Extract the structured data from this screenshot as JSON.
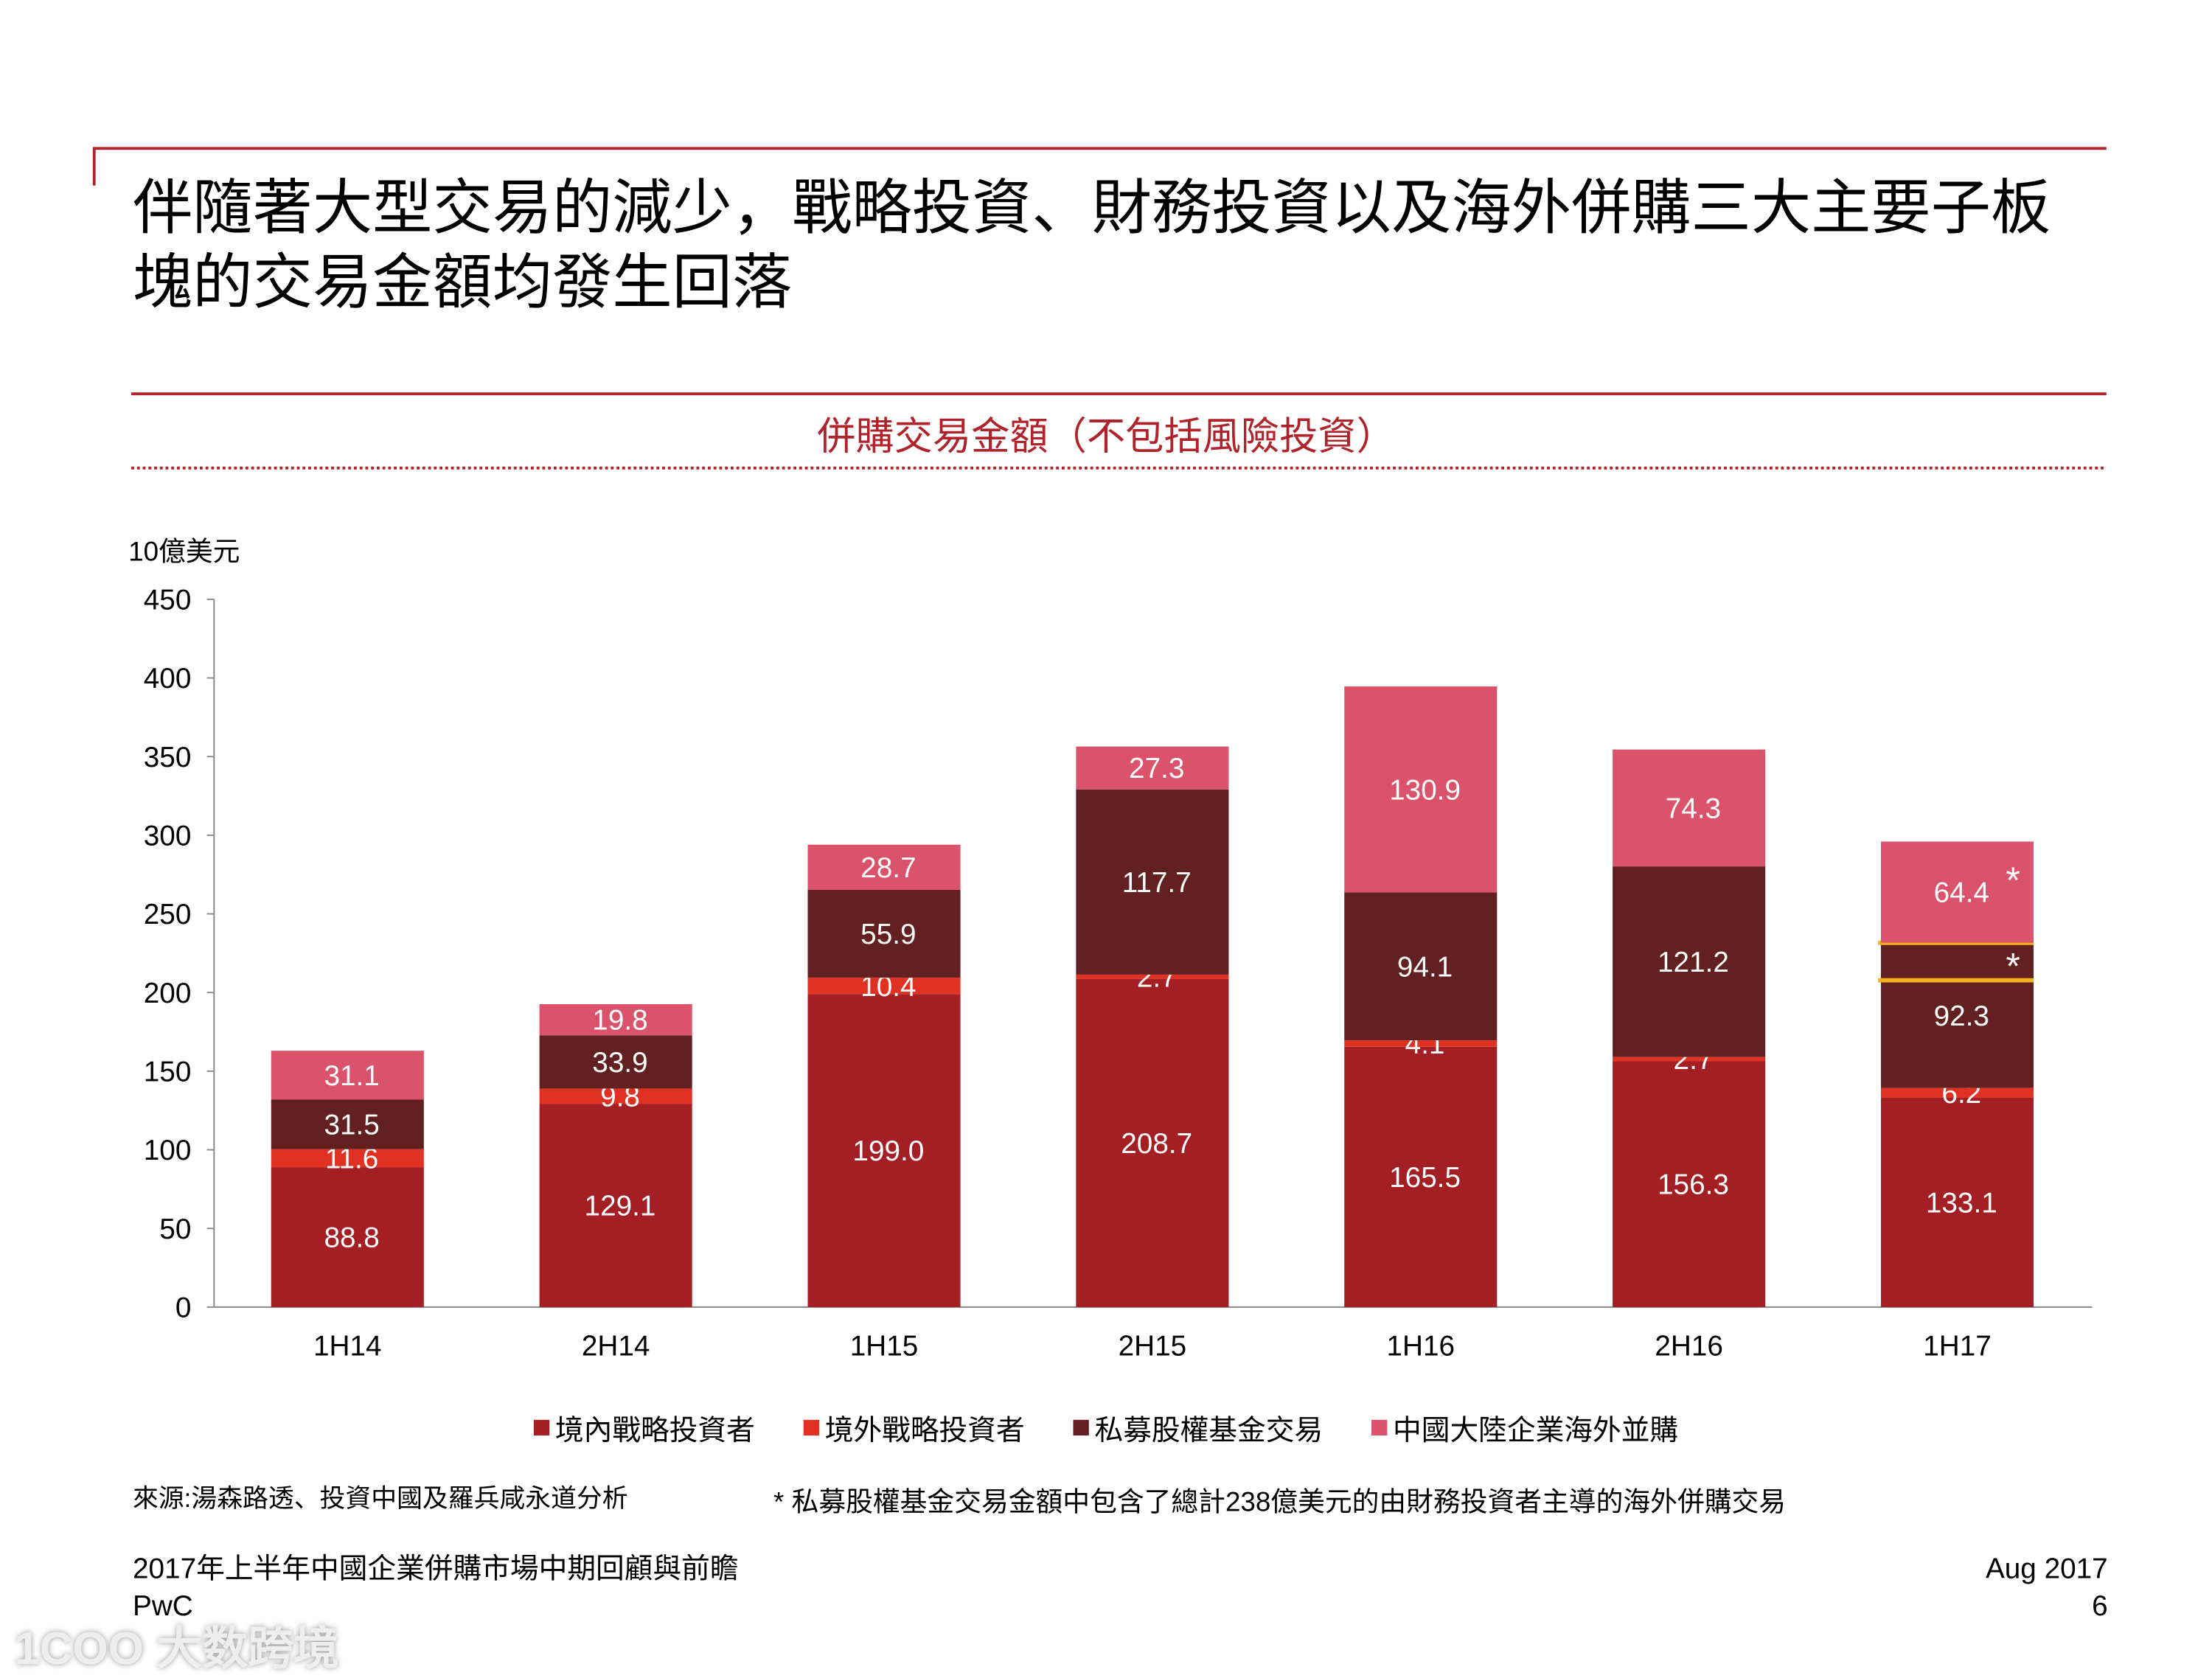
{
  "slide": {
    "title": "伴隨著大型交易的減少，戰略投資、財務投資以及海外併購三大主要子板塊的交易金額均發生回落",
    "source": "來源:湯森路透、投資中國及羅兵咸永道分析",
    "note": "* 私募股權基金交易金額中包含了總計238億美元的由財務投資者主導的海外併購交易",
    "footer_left_1": "2017年上半年中國企業併購市場中期回顧與前瞻",
    "footer_left_2": "PwC",
    "footer_right_1": "Aug 2017",
    "footer_right_2": "6",
    "watermark": "1COO 大数跨境",
    "accent": "#b0232a"
  },
  "chart_data": {
    "type": "bar",
    "stacked": true,
    "title": "併購交易金額（不包括風險投資）",
    "ylabel": "10億美元",
    "ylim": [
      0,
      450
    ],
    "yticks": [
      0,
      50,
      100,
      150,
      200,
      250,
      300,
      350,
      400,
      450
    ],
    "categories": [
      "1H14",
      "2H14",
      "1H15",
      "2H15",
      "1H16",
      "2H16",
      "1H17"
    ],
    "legend_position": "bottom",
    "series": [
      {
        "name": "境內戰略投資者",
        "color": "#a31f24",
        "values": [
          88.8,
          129.1,
          199.0,
          208.7,
          165.5,
          156.3,
          133.1
        ]
      },
      {
        "name": "境外戰略投資者",
        "color": "#e03123",
        "values": [
          11.6,
          9.8,
          10.4,
          2.7,
          4.1,
          2.7,
          6.2
        ]
      },
      {
        "name": "私募股權基金交易",
        "color": "#622120",
        "values": [
          31.5,
          33.9,
          55.9,
          117.7,
          94.1,
          121.2,
          92.3
        ]
      },
      {
        "name": "中國大陸企業海外並購",
        "color": "#db536a",
        "values": [
          31.1,
          19.8,
          28.7,
          27.3,
          130.9,
          74.3,
          64.4
        ]
      }
    ],
    "annotations": [
      {
        "category": "1H17",
        "series": "私募股權基金交易",
        "highlight_value": 23.8,
        "highlight_color": "#f5b21c",
        "marker": "*"
      },
      {
        "category": "1H17",
        "series": "中國大陸企業海外並購",
        "marker": "*"
      }
    ]
  }
}
